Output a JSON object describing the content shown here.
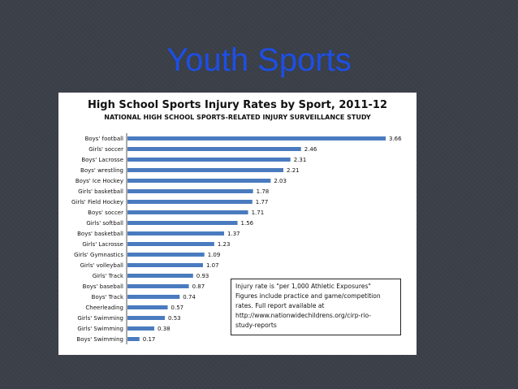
{
  "slide": {
    "title": "Youth Sports"
  },
  "chart_data": {
    "type": "bar",
    "orientation": "horizontal",
    "title": "High School Sports Injury Rates by Sport, 2011-12",
    "subtitle": "NATIONAL HIGH SCHOOL SPORTS-RELATED INJURY SURVEILLANCE STUDY",
    "categories": [
      "Boys' football",
      "Girls' soccer",
      "Boys' Lacrosse",
      "Boys' wrestling",
      "Boys' Ice Hockey",
      "Girls' basketball",
      "Girls' Field Hockey",
      "Boys' soccer",
      "Girls' softball",
      "Boys' basketball",
      "Girls' Lacrosse",
      "Girls' Gymnastics",
      "Girls' volleyball",
      "Girls' Track",
      "Boys' baseball",
      "Boys' Track",
      "Cheerleading",
      "Girls' Swimming",
      "Girls' Swimming",
      "Boys' Swimming"
    ],
    "values": [
      3.66,
      2.46,
      2.31,
      2.21,
      2.03,
      1.78,
      1.77,
      1.71,
      1.56,
      1.37,
      1.23,
      1.09,
      1.07,
      0.93,
      0.87,
      0.74,
      0.57,
      0.53,
      0.38,
      0.17
    ],
    "value_labels": [
      "3.66",
      "2.46",
      "2.31",
      "2.21",
      "2.03",
      "1.78",
      "1.77",
      "1.71",
      "1.56",
      "1.37",
      "1.23",
      "1.09",
      "1.07",
      "0.93",
      "0.87",
      "0.74",
      "0.57",
      "0.53",
      "0.38",
      "0.17"
    ],
    "xlim": [
      0,
      3.66
    ],
    "grid": false,
    "legend": "none",
    "bar_color": "#4a7bbf",
    "note": [
      "Injury rate is \"per 1,000 Athletic Exposures\"",
      "Figures include practice and game/competition",
      "rates.  Full report available at",
      "http://www.nationwidechildrens.org/cirp-rio-",
      "study-reports"
    ]
  }
}
